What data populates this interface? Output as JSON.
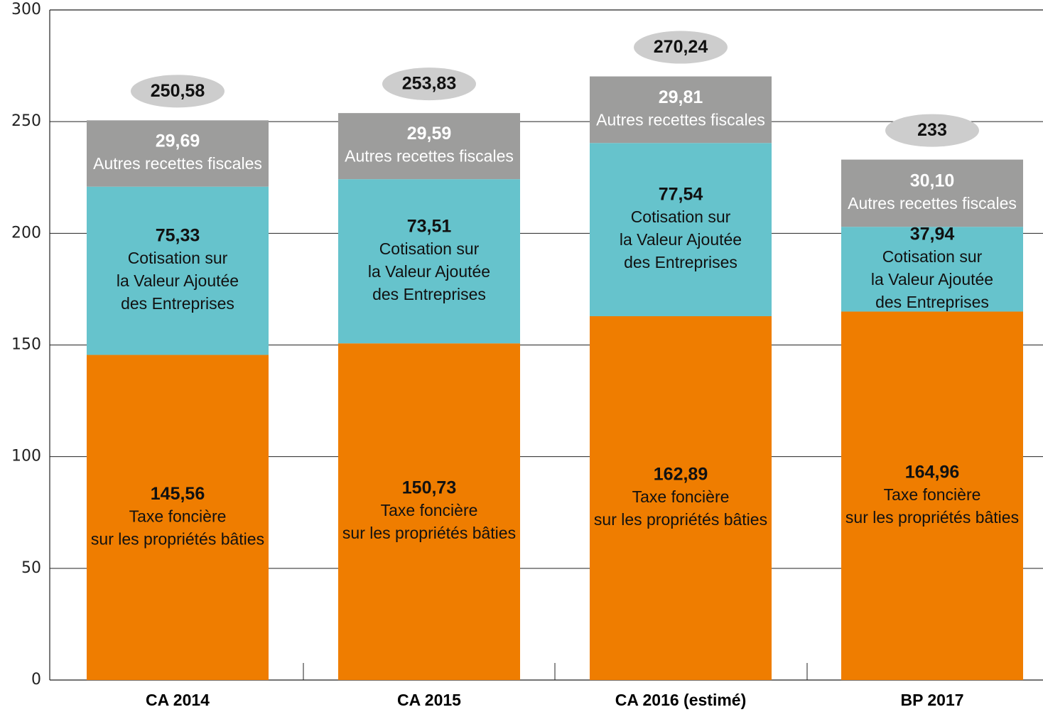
{
  "chart_data": {
    "type": "stacked_bar",
    "categories": [
      "CA 2014",
      "CA 2015",
      "CA 2016 (estimé)",
      "BP 2017"
    ],
    "series": [
      {
        "label_lines": [
          "Taxe foncière",
          "sur les propriétés bâties"
        ],
        "color": "#ef7d00",
        "values": [
          145.56,
          150.73,
          162.89,
          164.96
        ],
        "value_labels": [
          "145,56",
          "150,73",
          "162,89",
          "164,96"
        ]
      },
      {
        "label_lines": [
          "Cotisation sur",
          "la Valeur Ajoutée",
          "des Entreprises"
        ],
        "color": "#66c3cc",
        "values": [
          75.33,
          73.51,
          77.54,
          37.94
        ],
        "value_labels": [
          "75,33",
          "73,51",
          "77,54",
          "37,94"
        ]
      },
      {
        "label_lines": [
          "Autres recettes fiscales"
        ],
        "color": "#9d9d9c",
        "values": [
          29.69,
          29.59,
          29.81,
          30.1
        ],
        "value_labels": [
          "29,69",
          "29,59",
          "29,81",
          "30,10"
        ]
      }
    ],
    "totals": {
      "color": "#cdcdcd",
      "values": [
        250.58,
        253.83,
        270.24,
        233
      ],
      "value_labels": [
        "250,58",
        "253,83",
        "270,24",
        "233"
      ]
    },
    "ylim": [
      0,
      300
    ],
    "yticks": [
      0,
      50,
      100,
      150,
      200,
      250,
      300
    ],
    "grid": true
  }
}
